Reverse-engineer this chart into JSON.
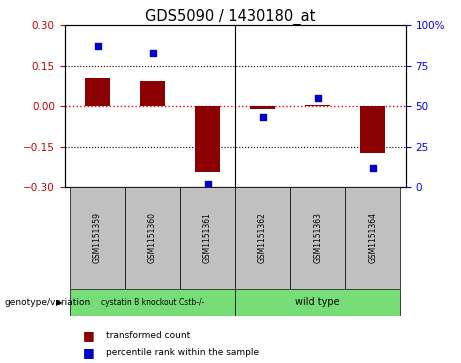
{
  "title": "GDS5090 / 1430180_at",
  "samples": [
    "GSM1151359",
    "GSM1151360",
    "GSM1151361",
    "GSM1151362",
    "GSM1151363",
    "GSM1151364"
  ],
  "bar_values": [
    0.105,
    0.095,
    -0.245,
    -0.01,
    0.005,
    -0.175
  ],
  "percentile_values": [
    87,
    83,
    2,
    43,
    55,
    12
  ],
  "ylim_left": [
    -0.3,
    0.3
  ],
  "ylim_right": [
    0,
    100
  ],
  "yticks_left": [
    -0.3,
    -0.15,
    0.0,
    0.15,
    0.3
  ],
  "yticks_right": [
    0,
    25,
    50,
    75,
    100
  ],
  "bar_color": "#8B0000",
  "dot_color": "#0000CC",
  "group1_label": "cystatin B knockout Cstb-/-",
  "group2_label": "wild type",
  "group1_color": "#77DD77",
  "group2_color": "#77DD77",
  "legend_bar_label": "transformed count",
  "legend_dot_label": "percentile rank within the sample",
  "genotype_label": "genotype/variation",
  "sample_box_color": "#C0C0C0",
  "right_tick_labels": [
    "0",
    "25",
    "50",
    "75",
    "100%"
  ]
}
